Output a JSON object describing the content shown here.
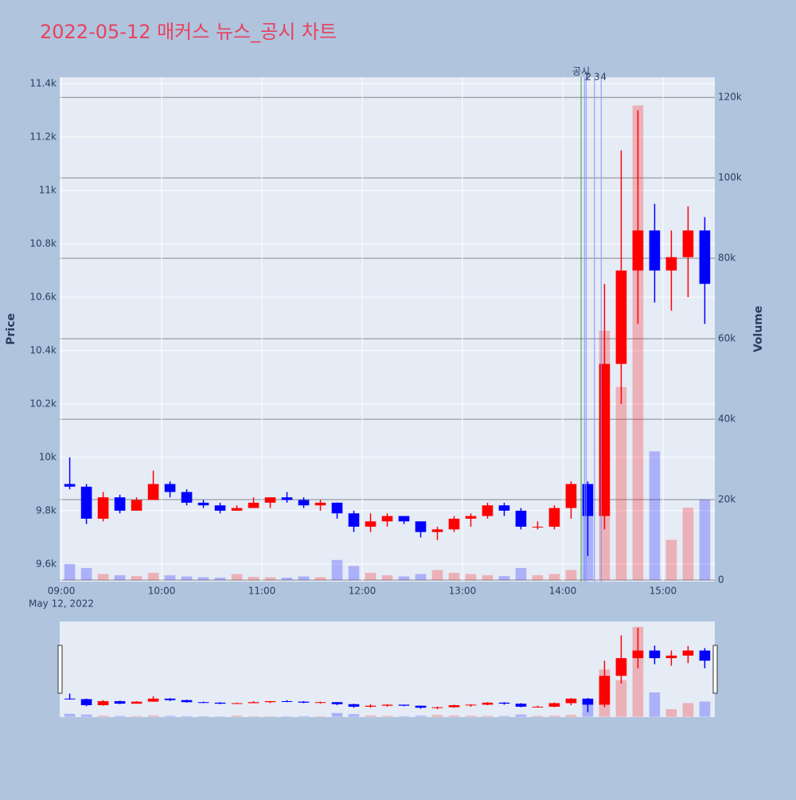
{
  "chart_data": {
    "type": "candlestick",
    "title": "2022-05-12 매커스 뉴스_공시 차트",
    "y_label": "Price",
    "y2_label": "Volume",
    "x": [
      "09:00",
      "09:10",
      "09:20",
      "09:30",
      "09:40",
      "09:50",
      "10:00",
      "10:10",
      "10:20",
      "10:30",
      "10:40",
      "10:50",
      "11:00",
      "11:10",
      "11:20",
      "11:30",
      "11:40",
      "11:50",
      "12:00",
      "12:10",
      "12:20",
      "12:30",
      "12:40",
      "12:50",
      "13:00",
      "13:10",
      "13:20",
      "13:30",
      "13:40",
      "13:50",
      "14:00",
      "14:10",
      "14:20",
      "14:30",
      "14:40",
      "14:50",
      "15:00",
      "15:10",
      "15:20"
    ],
    "open": [
      9900,
      9890,
      9770,
      9850,
      9800,
      9840,
      9900,
      9870,
      9830,
      9820,
      9800,
      9810,
      9830,
      9850,
      9840,
      9820,
      9830,
      9790,
      9740,
      9760,
      9780,
      9760,
      9720,
      9730,
      9770,
      9780,
      9820,
      9800,
      9740,
      9740,
      9810,
      9900,
      9780,
      10350,
      10700,
      10850,
      10700,
      10750,
      10850
    ],
    "high": [
      10000,
      9900,
      9870,
      9860,
      9850,
      9950,
      9910,
      9880,
      9840,
      9830,
      9820,
      9850,
      9850,
      9870,
      9850,
      9840,
      9830,
      9800,
      9790,
      9790,
      9780,
      9760,
      9740,
      9780,
      9790,
      9830,
      9830,
      9810,
      9760,
      9820,
      9910,
      9910,
      10650,
      11150,
      11300,
      10950,
      10850,
      10940,
      10900
    ],
    "low": [
      9880,
      9750,
      9760,
      9790,
      9800,
      9840,
      9850,
      9820,
      9810,
      9790,
      9800,
      9810,
      9810,
      9830,
      9810,
      9800,
      9770,
      9720,
      9720,
      9740,
      9750,
      9700,
      9690,
      9720,
      9740,
      9770,
      9780,
      9730,
      9730,
      9730,
      9770,
      9630,
      9730,
      10200,
      10500,
      10580,
      10550,
      10600,
      10500
    ],
    "close": [
      9890,
      9770,
      9850,
      9800,
      9840,
      9900,
      9870,
      9830,
      9820,
      9800,
      9810,
      9830,
      9850,
      9840,
      9820,
      9830,
      9790,
      9740,
      9760,
      9780,
      9760,
      9720,
      9730,
      9770,
      9780,
      9820,
      9800,
      9740,
      9740,
      9810,
      9900,
      9780,
      10350,
      10700,
      10850,
      10700,
      10750,
      10850,
      10650
    ],
    "volume": [
      4000,
      3000,
      1500,
      1200,
      1000,
      1800,
      1200,
      900,
      700,
      600,
      1500,
      800,
      700,
      600,
      900,
      700,
      5000,
      3500,
      1800,
      1200,
      900,
      1500,
      2500,
      1800,
      1500,
      1200,
      1000,
      3000,
      1200,
      1500,
      2500,
      20000,
      62000,
      48000,
      118000,
      32000,
      10000,
      18000,
      20000
    ],
    "up_color": "#ff0000",
    "down_color": "#0000ff",
    "xlim": [
      "08:59",
      "15:31"
    ],
    "xticks": [
      "09:00",
      "10:00",
      "11:00",
      "12:00",
      "13:00",
      "14:00",
      "15:00"
    ],
    "date_label": "May 12, 2022",
    "ylim": [
      9534,
      11424
    ],
    "yticks": [
      {
        "value": 9600,
        "label": "9.6k"
      },
      {
        "value": 9800,
        "label": "9.8k"
      },
      {
        "value": 10000,
        "label": "10k"
      },
      {
        "value": 10200,
        "label": "10.2k"
      },
      {
        "value": 10400,
        "label": "10.4k"
      },
      {
        "value": 10600,
        "label": "10.6k"
      },
      {
        "value": 10800,
        "label": "10.8k"
      },
      {
        "value": 11000,
        "label": "11k"
      },
      {
        "value": 11200,
        "label": "11.2k"
      },
      {
        "value": 11400,
        "label": "11.4k"
      }
    ],
    "y2lim": [
      -400,
      125000
    ],
    "y2ticks": [
      0,
      {
        "value": 20000,
        "label": "20k"
      },
      {
        "value": 40000,
        "label": "40k"
      },
      {
        "value": 60000,
        "label": "60k"
      },
      {
        "value": 80000,
        "label": "80k"
      },
      {
        "value": 100000,
        "label": "100k"
      },
      {
        "value": 120000,
        "label": "120k"
      }
    ],
    "annotations": [
      {
        "x": "14:11",
        "label": "공시",
        "color": "#2ca02c"
      },
      {
        "x": "14:13",
        "label": "1",
        "color": "#8090ff"
      },
      {
        "x": "14:14",
        "label": "2",
        "color": "#8090ff"
      },
      {
        "x": "14:19",
        "label": "3",
        "color": "#8090ff"
      },
      {
        "x": "14:23",
        "label": "4",
        "color": "#8090ff"
      }
    ]
  }
}
